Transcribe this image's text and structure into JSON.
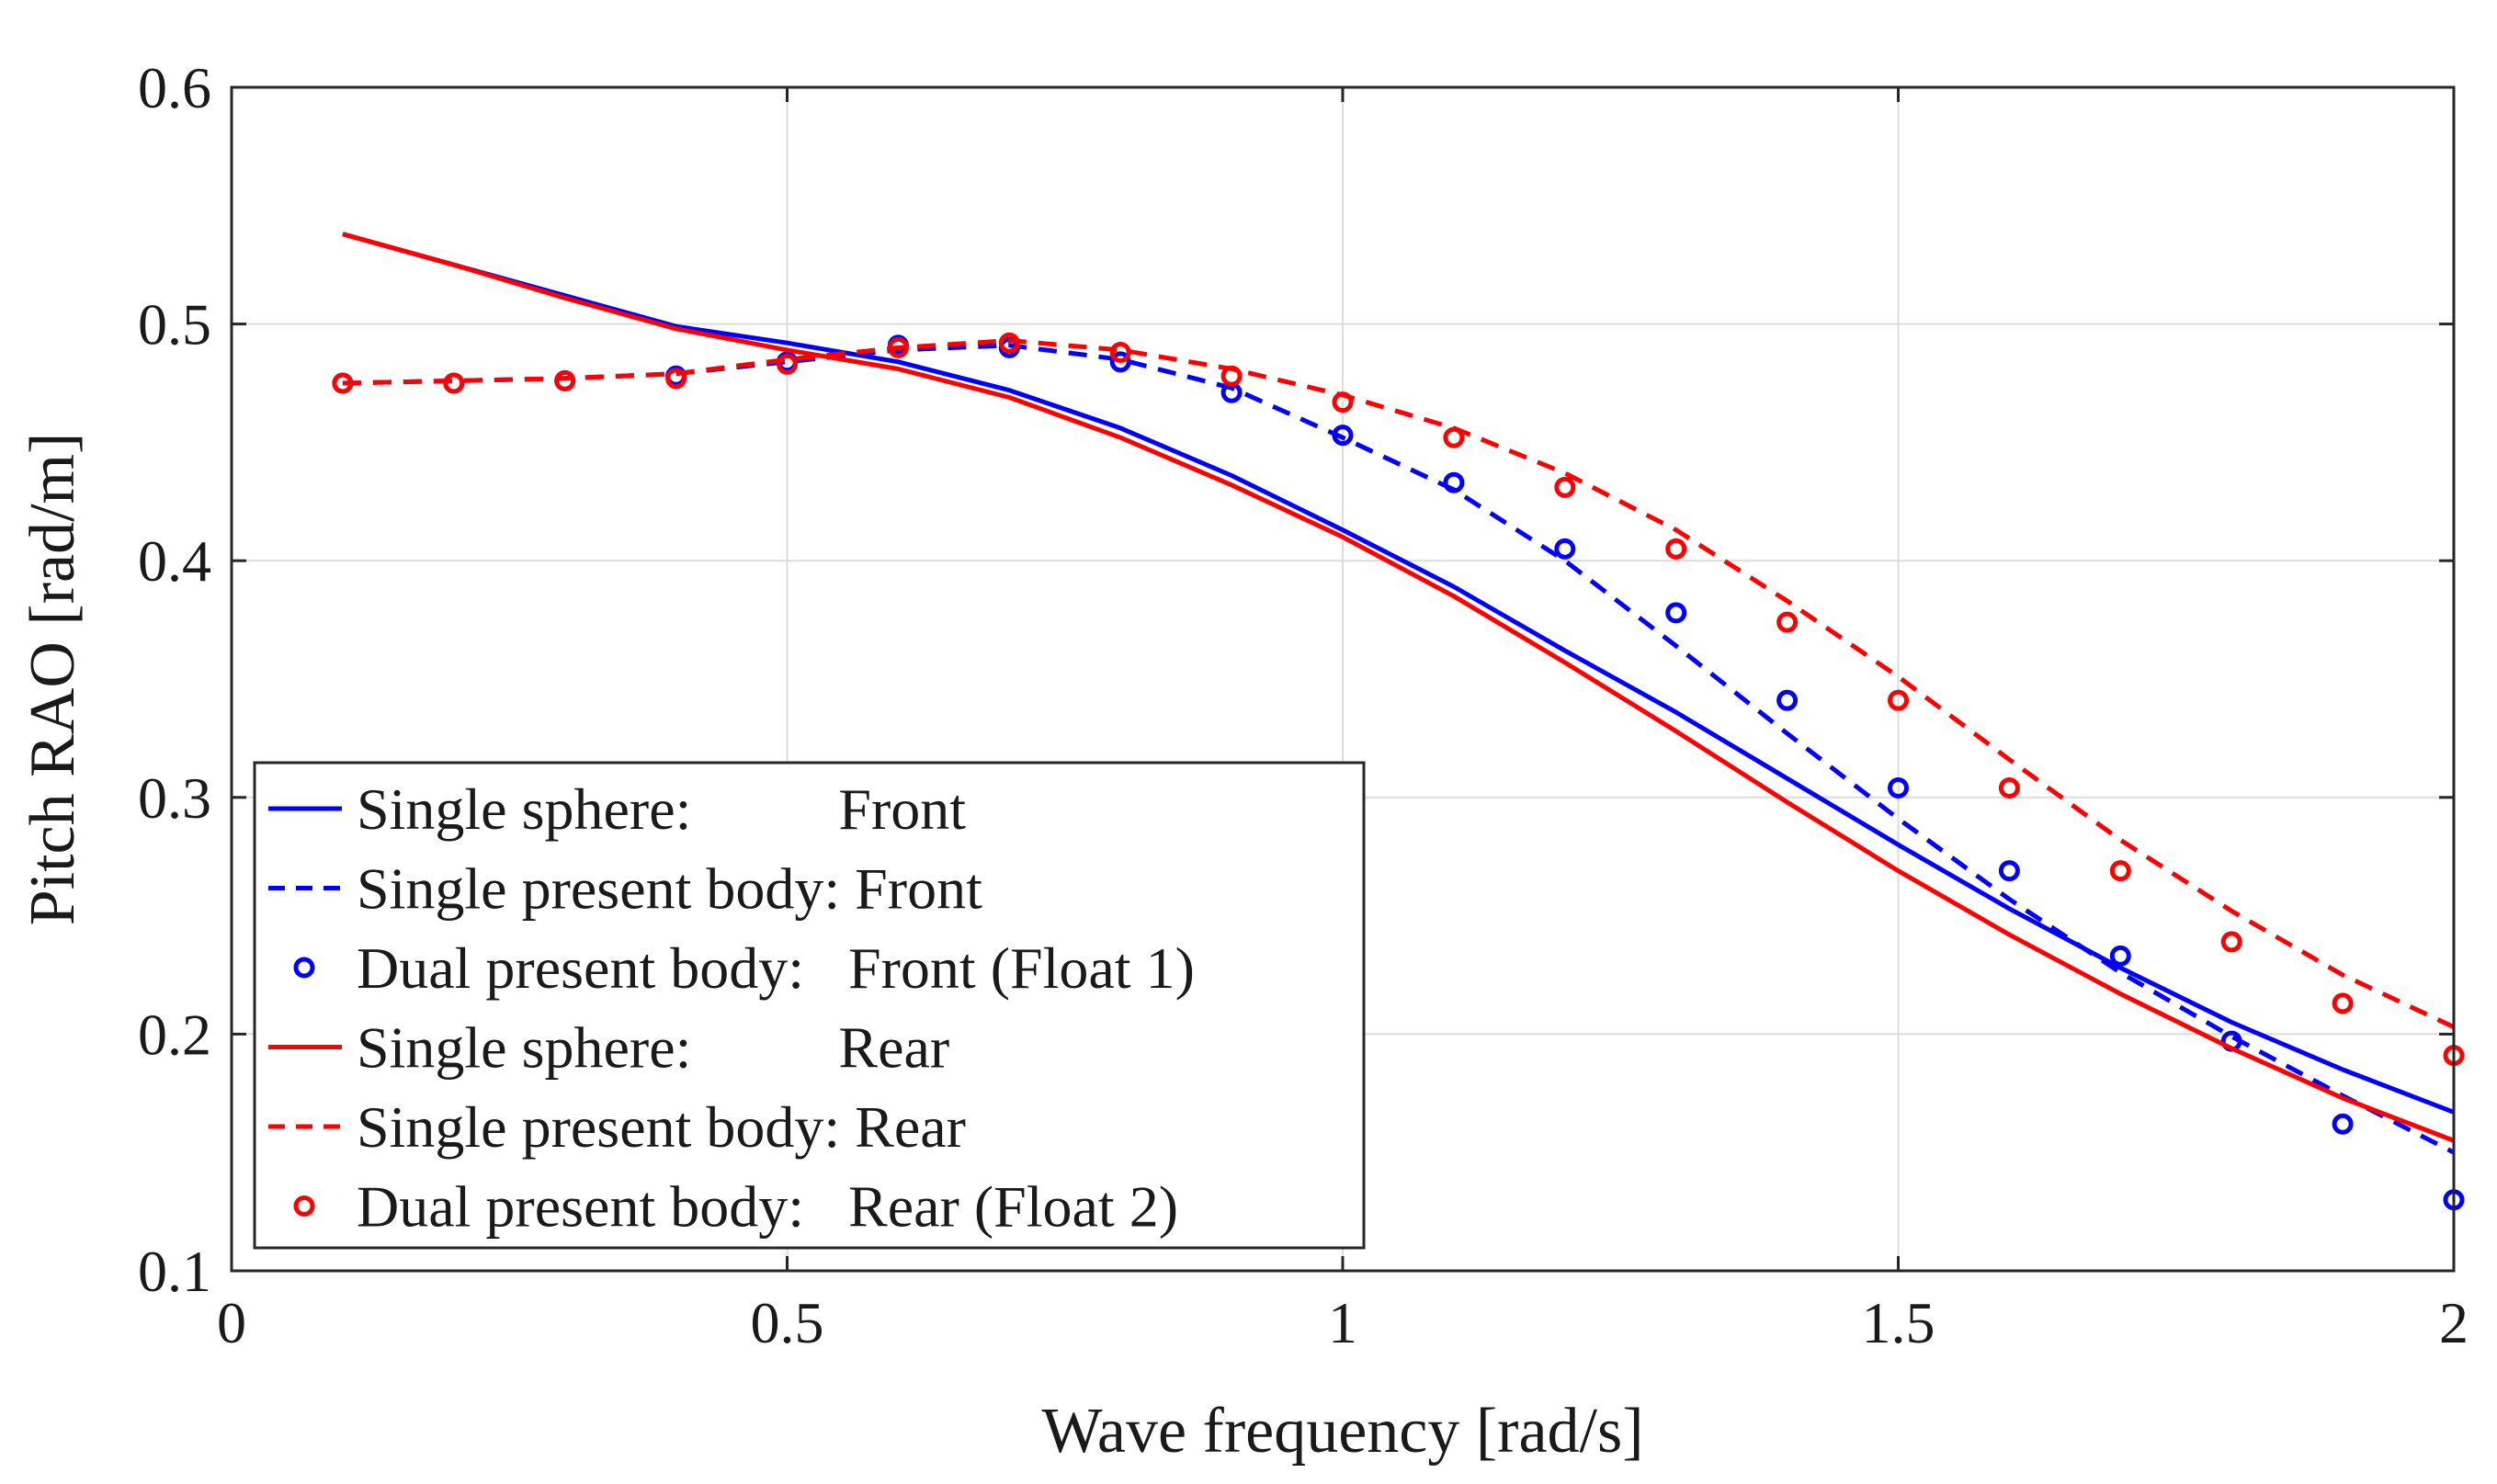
{
  "chart_data": {
    "type": "line",
    "title": "",
    "xlabel": "Wave frequency [rad/s]",
    "ylabel": "Pitch RAO [rad/m]",
    "xlim": [
      0,
      2
    ],
    "ylim": [
      0.1,
      0.6
    ],
    "xticks": [
      0,
      0.5,
      1,
      1.5,
      2
    ],
    "xtick_labels": [
      "0",
      "0.5",
      "1",
      "1.5",
      "2"
    ],
    "yticks": [
      0.1,
      0.2,
      0.3,
      0.4,
      0.5,
      0.6
    ],
    "ytick_labels": [
      "0.1",
      "0.2",
      "0.3",
      "0.4",
      "0.5",
      "0.6"
    ],
    "grid": true,
    "legend_position": "bottom-left",
    "series": [
      {
        "name": "Single sphere:          Front",
        "style": "solid",
        "color": "#0000ff",
        "x": [
          0.1,
          0.2,
          0.3,
          0.4,
          0.5,
          0.6,
          0.7,
          0.8,
          0.9,
          1.0,
          1.1,
          1.2,
          1.3,
          1.4,
          1.5,
          1.6,
          1.7,
          1.8,
          1.9,
          2.0
        ],
        "y": [
          0.538,
          0.525,
          0.512,
          0.499,
          0.492,
          0.484,
          0.472,
          0.456,
          0.436,
          0.413,
          0.389,
          0.362,
          0.336,
          0.308,
          0.28,
          0.253,
          0.228,
          0.205,
          0.185,
          0.167
        ]
      },
      {
        "name": "Single present body: Front",
        "style": "dashed",
        "color": "#0000ff",
        "x": [
          0.1,
          0.2,
          0.3,
          0.4,
          0.5,
          0.6,
          0.7,
          0.8,
          0.9,
          1.0,
          1.1,
          1.2,
          1.3,
          1.4,
          1.5,
          1.6,
          1.7,
          1.8,
          1.9,
          2.0
        ],
        "y": [
          0.475,
          0.476,
          0.477,
          0.479,
          0.484,
          0.489,
          0.491,
          0.485,
          0.473,
          0.452,
          0.43,
          0.4,
          0.364,
          0.327,
          0.291,
          0.257,
          0.226,
          0.199,
          0.174,
          0.15
        ]
      },
      {
        "name": "Dual present body:   Front (Float 1)",
        "style": "markers",
        "color": "#0000ff",
        "x": [
          0.1,
          0.2,
          0.3,
          0.4,
          0.5,
          0.6,
          0.7,
          0.8,
          0.9,
          1.0,
          1.1,
          1.2,
          1.3,
          1.4,
          1.5,
          1.6,
          1.7,
          1.8,
          1.9,
          2.0
        ],
        "y": [
          0.475,
          0.475,
          0.476,
          0.478,
          0.484,
          0.491,
          0.49,
          0.484,
          0.471,
          0.453,
          0.433,
          0.405,
          0.378,
          0.341,
          0.304,
          0.269,
          0.233,
          0.197,
          0.162,
          0.13
        ]
      },
      {
        "name": "Single sphere:          Rear",
        "style": "solid",
        "color": "#ff0000",
        "x": [
          0.1,
          0.2,
          0.3,
          0.4,
          0.5,
          0.6,
          0.7,
          0.8,
          0.9,
          1.0,
          1.1,
          1.2,
          1.3,
          1.4,
          1.5,
          1.6,
          1.7,
          1.8,
          1.9,
          2.0
        ],
        "y": [
          0.538,
          0.525,
          0.511,
          0.498,
          0.489,
          0.481,
          0.469,
          0.452,
          0.432,
          0.41,
          0.385,
          0.357,
          0.328,
          0.298,
          0.269,
          0.242,
          0.217,
          0.194,
          0.173,
          0.155
        ]
      },
      {
        "name": "Single present body: Rear",
        "style": "dashed",
        "color": "#ff0000",
        "x": [
          0.1,
          0.2,
          0.3,
          0.4,
          0.5,
          0.6,
          0.7,
          0.8,
          0.9,
          1.0,
          1.1,
          1.2,
          1.3,
          1.4,
          1.5,
          1.6,
          1.7,
          1.8,
          1.9,
          2.0
        ],
        "y": [
          0.475,
          0.476,
          0.477,
          0.479,
          0.485,
          0.49,
          0.493,
          0.489,
          0.481,
          0.47,
          0.456,
          0.437,
          0.413,
          0.383,
          0.351,
          0.316,
          0.282,
          0.252,
          0.225,
          0.203
        ]
      },
      {
        "name": "Dual present body:   Rear (Float 2)",
        "style": "markers",
        "color": "#ff0000",
        "x": [
          0.1,
          0.2,
          0.3,
          0.4,
          0.5,
          0.6,
          0.7,
          0.8,
          0.9,
          1.0,
          1.1,
          1.2,
          1.3,
          1.4,
          1.5,
          1.6,
          1.7,
          1.8,
          1.9,
          2.0
        ],
        "y": [
          0.475,
          0.475,
          0.476,
          0.477,
          0.483,
          0.49,
          0.492,
          0.488,
          0.478,
          0.467,
          0.452,
          0.431,
          0.405,
          0.374,
          0.341,
          0.304,
          0.269,
          0.239,
          0.213,
          0.191
        ]
      }
    ]
  }
}
